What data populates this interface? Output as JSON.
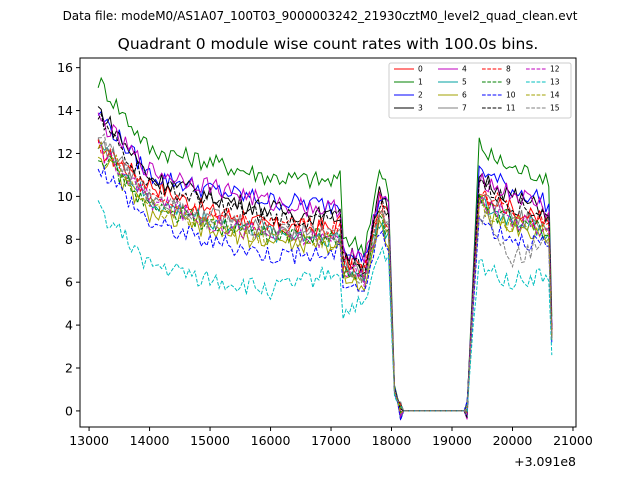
{
  "header": {
    "data_file": "Data file: modeM0/AS1A07_100T03_9000003242_21930cztM0_level2_quad_clean.evt",
    "title": "Quadrant 0 module wise count rates with 100.0s bins."
  },
  "chart_data": {
    "type": "line",
    "title": "Quadrant 0 module wise count rates with 100.0s bins.",
    "xlabel": "",
    "ylabel": "",
    "x_offset_label": "+3.091e8",
    "xlim": [
      12850,
      21050
    ],
    "ylim": [
      -0.75,
      16.45
    ],
    "xticks": [
      13000,
      14000,
      15000,
      16000,
      17000,
      18000,
      19000,
      20000,
      21000
    ],
    "yticks": [
      0,
      2,
      4,
      6,
      8,
      10,
      12,
      14,
      16
    ],
    "legend_position": "top-right",
    "grid": false,
    "anchor_x": [
      13150,
      14000,
      15000,
      16000,
      17000,
      17150,
      17200,
      17400,
      17550,
      17800,
      17950,
      18050,
      18150,
      18500,
      19000,
      19250,
      19350,
      19450,
      19600,
      20000,
      20500,
      20600,
      20650
    ],
    "series": [
      {
        "name": "0",
        "color": "#ff0000",
        "dash": "solid",
        "values": [
          12.2,
          10.6,
          9.3,
          8.6,
          8.5,
          8.8,
          6.8,
          7.0,
          6.3,
          9.8,
          9.0,
          1.0,
          0.0,
          0.0,
          0.0,
          0.0,
          5.5,
          10.4,
          10.0,
          9.4,
          8.8,
          8.6,
          3.6
        ]
      },
      {
        "name": "1",
        "color": "#008000",
        "dash": "solid",
        "values": [
          15.4,
          12.2,
          11.6,
          10.9,
          10.7,
          10.8,
          8.2,
          7.8,
          7.6,
          11.1,
          10.2,
          1.2,
          0.0,
          0.0,
          0.0,
          0.0,
          6.5,
          12.5,
          11.9,
          11.3,
          11.0,
          10.3,
          4.4
        ]
      },
      {
        "name": "2",
        "color": "#0000ff",
        "dash": "solid",
        "values": [
          13.9,
          11.0,
          10.3,
          9.8,
          9.6,
          9.7,
          7.8,
          7.4,
          7.0,
          10.0,
          9.4,
          1.1,
          0.0,
          0.0,
          0.0,
          0.0,
          6.0,
          11.4,
          11.0,
          10.3,
          9.9,
          9.5,
          4.0
        ]
      },
      {
        "name": "3",
        "color": "#000000",
        "dash": "solid",
        "values": [
          14.1,
          10.9,
          10.0,
          9.4,
          9.0,
          9.2,
          7.4,
          7.1,
          6.8,
          10.1,
          9.2,
          1.0,
          0.0,
          0.0,
          0.0,
          0.0,
          5.8,
          11.1,
          10.7,
          10.0,
          9.4,
          9.0,
          3.8
        ]
      },
      {
        "name": "4",
        "color": "#bf00bf",
        "dash": "solid",
        "values": [
          13.6,
          11.2,
          10.5,
          9.7,
          9.4,
          9.5,
          7.6,
          7.2,
          6.9,
          10.1,
          9.3,
          1.0,
          0.0,
          0.0,
          0.0,
          0.0,
          5.9,
          11.0,
          10.6,
          10.1,
          9.6,
          9.1,
          3.9
        ]
      },
      {
        "name": "5",
        "color": "#00a0a0",
        "dash": "solid",
        "values": [
          12.6,
          9.7,
          8.9,
          8.3,
          8.1,
          8.0,
          6.7,
          6.4,
          6.2,
          8.8,
          8.3,
          0.9,
          0.0,
          0.0,
          0.0,
          0.0,
          5.2,
          9.8,
          9.3,
          8.9,
          8.5,
          8.1,
          3.4
        ]
      },
      {
        "name": "6",
        "color": "#a0a000",
        "dash": "solid",
        "values": [
          12.0,
          9.2,
          8.4,
          7.9,
          7.7,
          7.8,
          6.4,
          6.1,
          5.9,
          8.6,
          8.0,
          0.9,
          0.0,
          0.0,
          0.0,
          0.0,
          5.0,
          9.6,
          9.0,
          8.5,
          8.2,
          7.9,
          3.3
        ]
      },
      {
        "name": "7",
        "color": "#808080",
        "dash": "solid",
        "values": [
          12.7,
          10.1,
          9.1,
          8.5,
          8.3,
          8.4,
          6.9,
          6.6,
          6.3,
          9.3,
          8.7,
          1.0,
          0.0,
          0.0,
          0.0,
          0.0,
          5.4,
          10.2,
          9.7,
          9.1,
          8.7,
          8.4,
          3.6
        ]
      },
      {
        "name": "8",
        "color": "#ff0000",
        "dash": "dashed",
        "values": [
          12.4,
          10.2,
          9.2,
          8.7,
          8.5,
          8.6,
          6.9,
          6.6,
          6.4,
          9.4,
          8.8,
          1.0,
          0.0,
          0.0,
          0.0,
          0.0,
          5.5,
          10.5,
          10.0,
          9.4,
          8.9,
          8.6,
          3.7
        ]
      },
      {
        "name": "9",
        "color": "#008000",
        "dash": "dashed",
        "values": [
          12.1,
          9.5,
          8.7,
          8.2,
          8.0,
          8.0,
          6.6,
          6.3,
          6.1,
          8.9,
          8.3,
          0.9,
          0.0,
          0.0,
          0.0,
          0.0,
          5.2,
          9.9,
          9.4,
          8.8,
          8.4,
          8.0,
          3.5
        ]
      },
      {
        "name": "10",
        "color": "#0000ff",
        "dash": "dashed",
        "values": [
          11.5,
          8.8,
          7.9,
          7.3,
          7.3,
          7.4,
          6.1,
          5.9,
          5.6,
          8.3,
          7.7,
          0.8,
          0.0,
          0.0,
          0.0,
          0.0,
          4.8,
          9.0,
          8.6,
          8.1,
          7.8,
          7.5,
          3.2
        ]
      },
      {
        "name": "11",
        "color": "#000000",
        "dash": "dashed",
        "values": [
          13.6,
          10.6,
          9.7,
          9.0,
          8.9,
          9.0,
          7.2,
          6.9,
          6.6,
          9.8,
          9.0,
          1.0,
          0.0,
          0.0,
          0.0,
          0.0,
          5.7,
          10.9,
          10.3,
          9.6,
          9.2,
          8.9,
          3.8
        ]
      },
      {
        "name": "12",
        "color": "#bf00bf",
        "dash": "dashed",
        "values": [
          12.3,
          9.8,
          8.8,
          8.2,
          8.0,
          8.1,
          6.6,
          6.4,
          6.1,
          9.0,
          8.4,
          0.9,
          0.0,
          0.0,
          0.0,
          0.0,
          5.3,
          10.0,
          9.5,
          8.9,
          8.5,
          8.2,
          3.5
        ]
      },
      {
        "name": "13",
        "color": "#00bfbf",
        "dash": "dashed",
        "values": [
          9.4,
          6.8,
          6.1,
          5.6,
          6.4,
          6.5,
          4.4,
          5.0,
          4.7,
          7.4,
          6.9,
          0.7,
          0.0,
          0.0,
          0.0,
          0.0,
          4.0,
          6.8,
          6.6,
          6.0,
          6.3,
          5.9,
          2.6
        ]
      },
      {
        "name": "14",
        "color": "#a0a000",
        "dash": "dashed",
        "values": [
          12.5,
          9.6,
          8.7,
          8.1,
          7.9,
          8.0,
          6.5,
          6.3,
          6.0,
          8.9,
          8.3,
          0.9,
          0.0,
          0.0,
          0.0,
          0.0,
          5.2,
          9.8,
          9.3,
          8.7,
          8.3,
          8.0,
          3.4
        ]
      },
      {
        "name": "15",
        "color": "#808080",
        "dash": "dashed",
        "values": [
          12.8,
          9.9,
          8.9,
          8.3,
          8.1,
          8.2,
          6.7,
          6.4,
          6.2,
          9.1,
          8.5,
          0.9,
          0.0,
          0.0,
          0.0,
          0.0,
          5.3,
          9.3,
          8.7,
          7.1,
          7.8,
          7.5,
          3.3
        ]
      }
    ]
  }
}
